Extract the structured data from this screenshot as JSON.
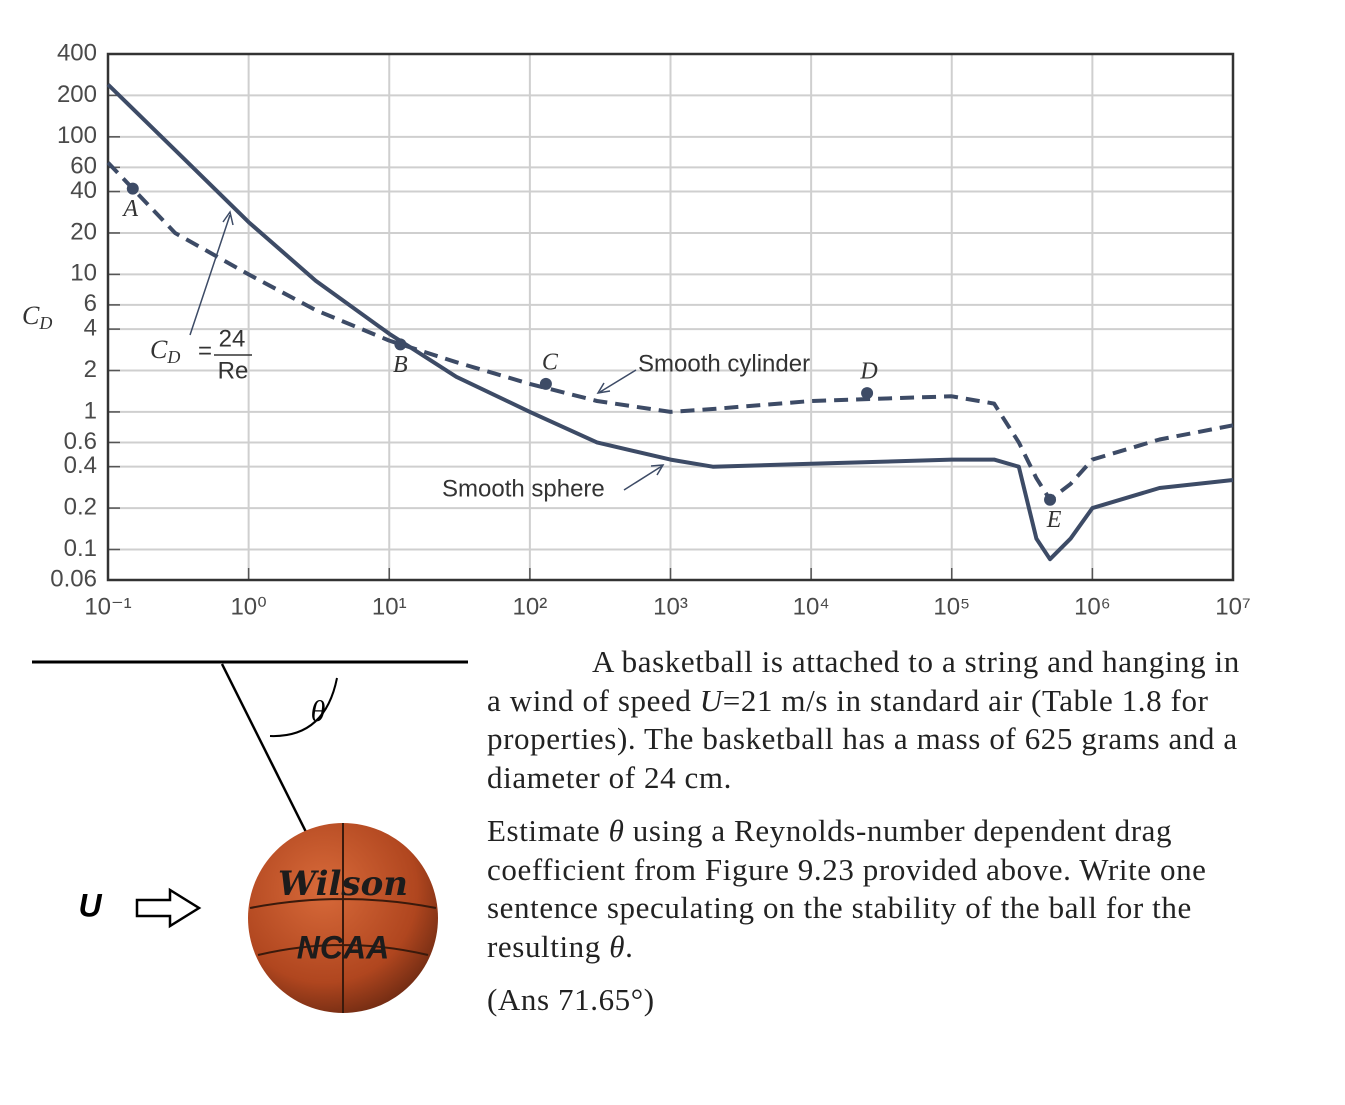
{
  "chart_data": {
    "type": "line",
    "xscale": "log",
    "yscale": "log",
    "grid": true,
    "ylabel": {
      "main": "C",
      "sub": "D"
    },
    "xlim": [
      0.1,
      10000000
    ],
    "ylim": [
      0.06,
      400
    ],
    "xticks": [
      {
        "value": 0.1,
        "label": "10⁻¹"
      },
      {
        "value": 1,
        "label": "10⁰"
      },
      {
        "value": 10,
        "label": "10¹"
      },
      {
        "value": 100,
        "label": "10²"
      },
      {
        "value": 1000,
        "label": "10³"
      },
      {
        "value": 10000,
        "label": "10⁴"
      },
      {
        "value": 100000,
        "label": "10⁵"
      },
      {
        "value": 1000000,
        "label": "10⁶"
      },
      {
        "value": 10000000,
        "label": "10⁷"
      }
    ],
    "yticks": [
      400,
      200,
      100,
      60,
      40,
      20,
      10,
      6,
      4,
      2,
      1,
      0.6,
      0.4,
      0.2,
      0.1,
      0.06
    ],
    "x": [
      0.1,
      0.3,
      1,
      3,
      10,
      30,
      100,
      300,
      1000,
      2000,
      10000,
      100000,
      200000,
      300000,
      400000,
      500000,
      700000,
      1000000,
      3000000,
      10000000
    ],
    "series": [
      {
        "name": "Smooth sphere",
        "color": "#3d4b66",
        "line_style": "solid",
        "values": [
          240,
          80,
          24,
          9,
          3.7,
          1.8,
          1.0,
          0.6,
          0.45,
          0.4,
          0.42,
          0.45,
          0.45,
          0.4,
          0.12,
          0.085,
          0.12,
          0.2,
          0.28,
          0.32
        ]
      },
      {
        "name": "Smooth cylinder",
        "color": "#3d4b66",
        "line_style": "dashed",
        "values": [
          65,
          20,
          10,
          5.5,
          3.3,
          2.3,
          1.6,
          1.2,
          1.0,
          1.05,
          1.2,
          1.3,
          1.15,
          0.6,
          0.33,
          0.23,
          0.3,
          0.45,
          0.63,
          0.8
        ]
      }
    ],
    "points": [
      {
        "label": "A",
        "x": 0.15,
        "y": 42
      },
      {
        "label": "B",
        "x": 12,
        "y": 3.1
      },
      {
        "label": "C",
        "x": 130,
        "y": 1.6
      },
      {
        "label": "D",
        "x": 25000,
        "y": 1.37
      },
      {
        "label": "E",
        "x": 500000,
        "y": 0.23
      }
    ],
    "reference_line": {
      "x": [
        0.3,
        1
      ],
      "values": [
        80,
        24
      ],
      "label": {
        "lhs_main": "C",
        "lhs_sub": "D",
        "equals": "=",
        "numerator": "24",
        "denominator": "Re"
      }
    }
  },
  "figure": {
    "theta": "θ",
    "wind_label": "U",
    "ball_brand": "Wilson",
    "ball_logo": "NCAA"
  },
  "problem": {
    "paragraph_1": [
      "A basketball is attached to a string and hanging in a wind of speed ",
      "U",
      "=21 m/s in standard air (Table 1.8 for properties). The basketball has a mass of 625 grams and a diameter of 24 cm."
    ],
    "paragraph_2": [
      "Estimate  ",
      "θ",
      " using a Reynolds-number dependent drag coefficient from Figure 9.23 provided above. Write one sentence speculating on the stability of the ball for the resulting ",
      "θ",
      "."
    ],
    "answer": "(Ans 71.65°)"
  }
}
